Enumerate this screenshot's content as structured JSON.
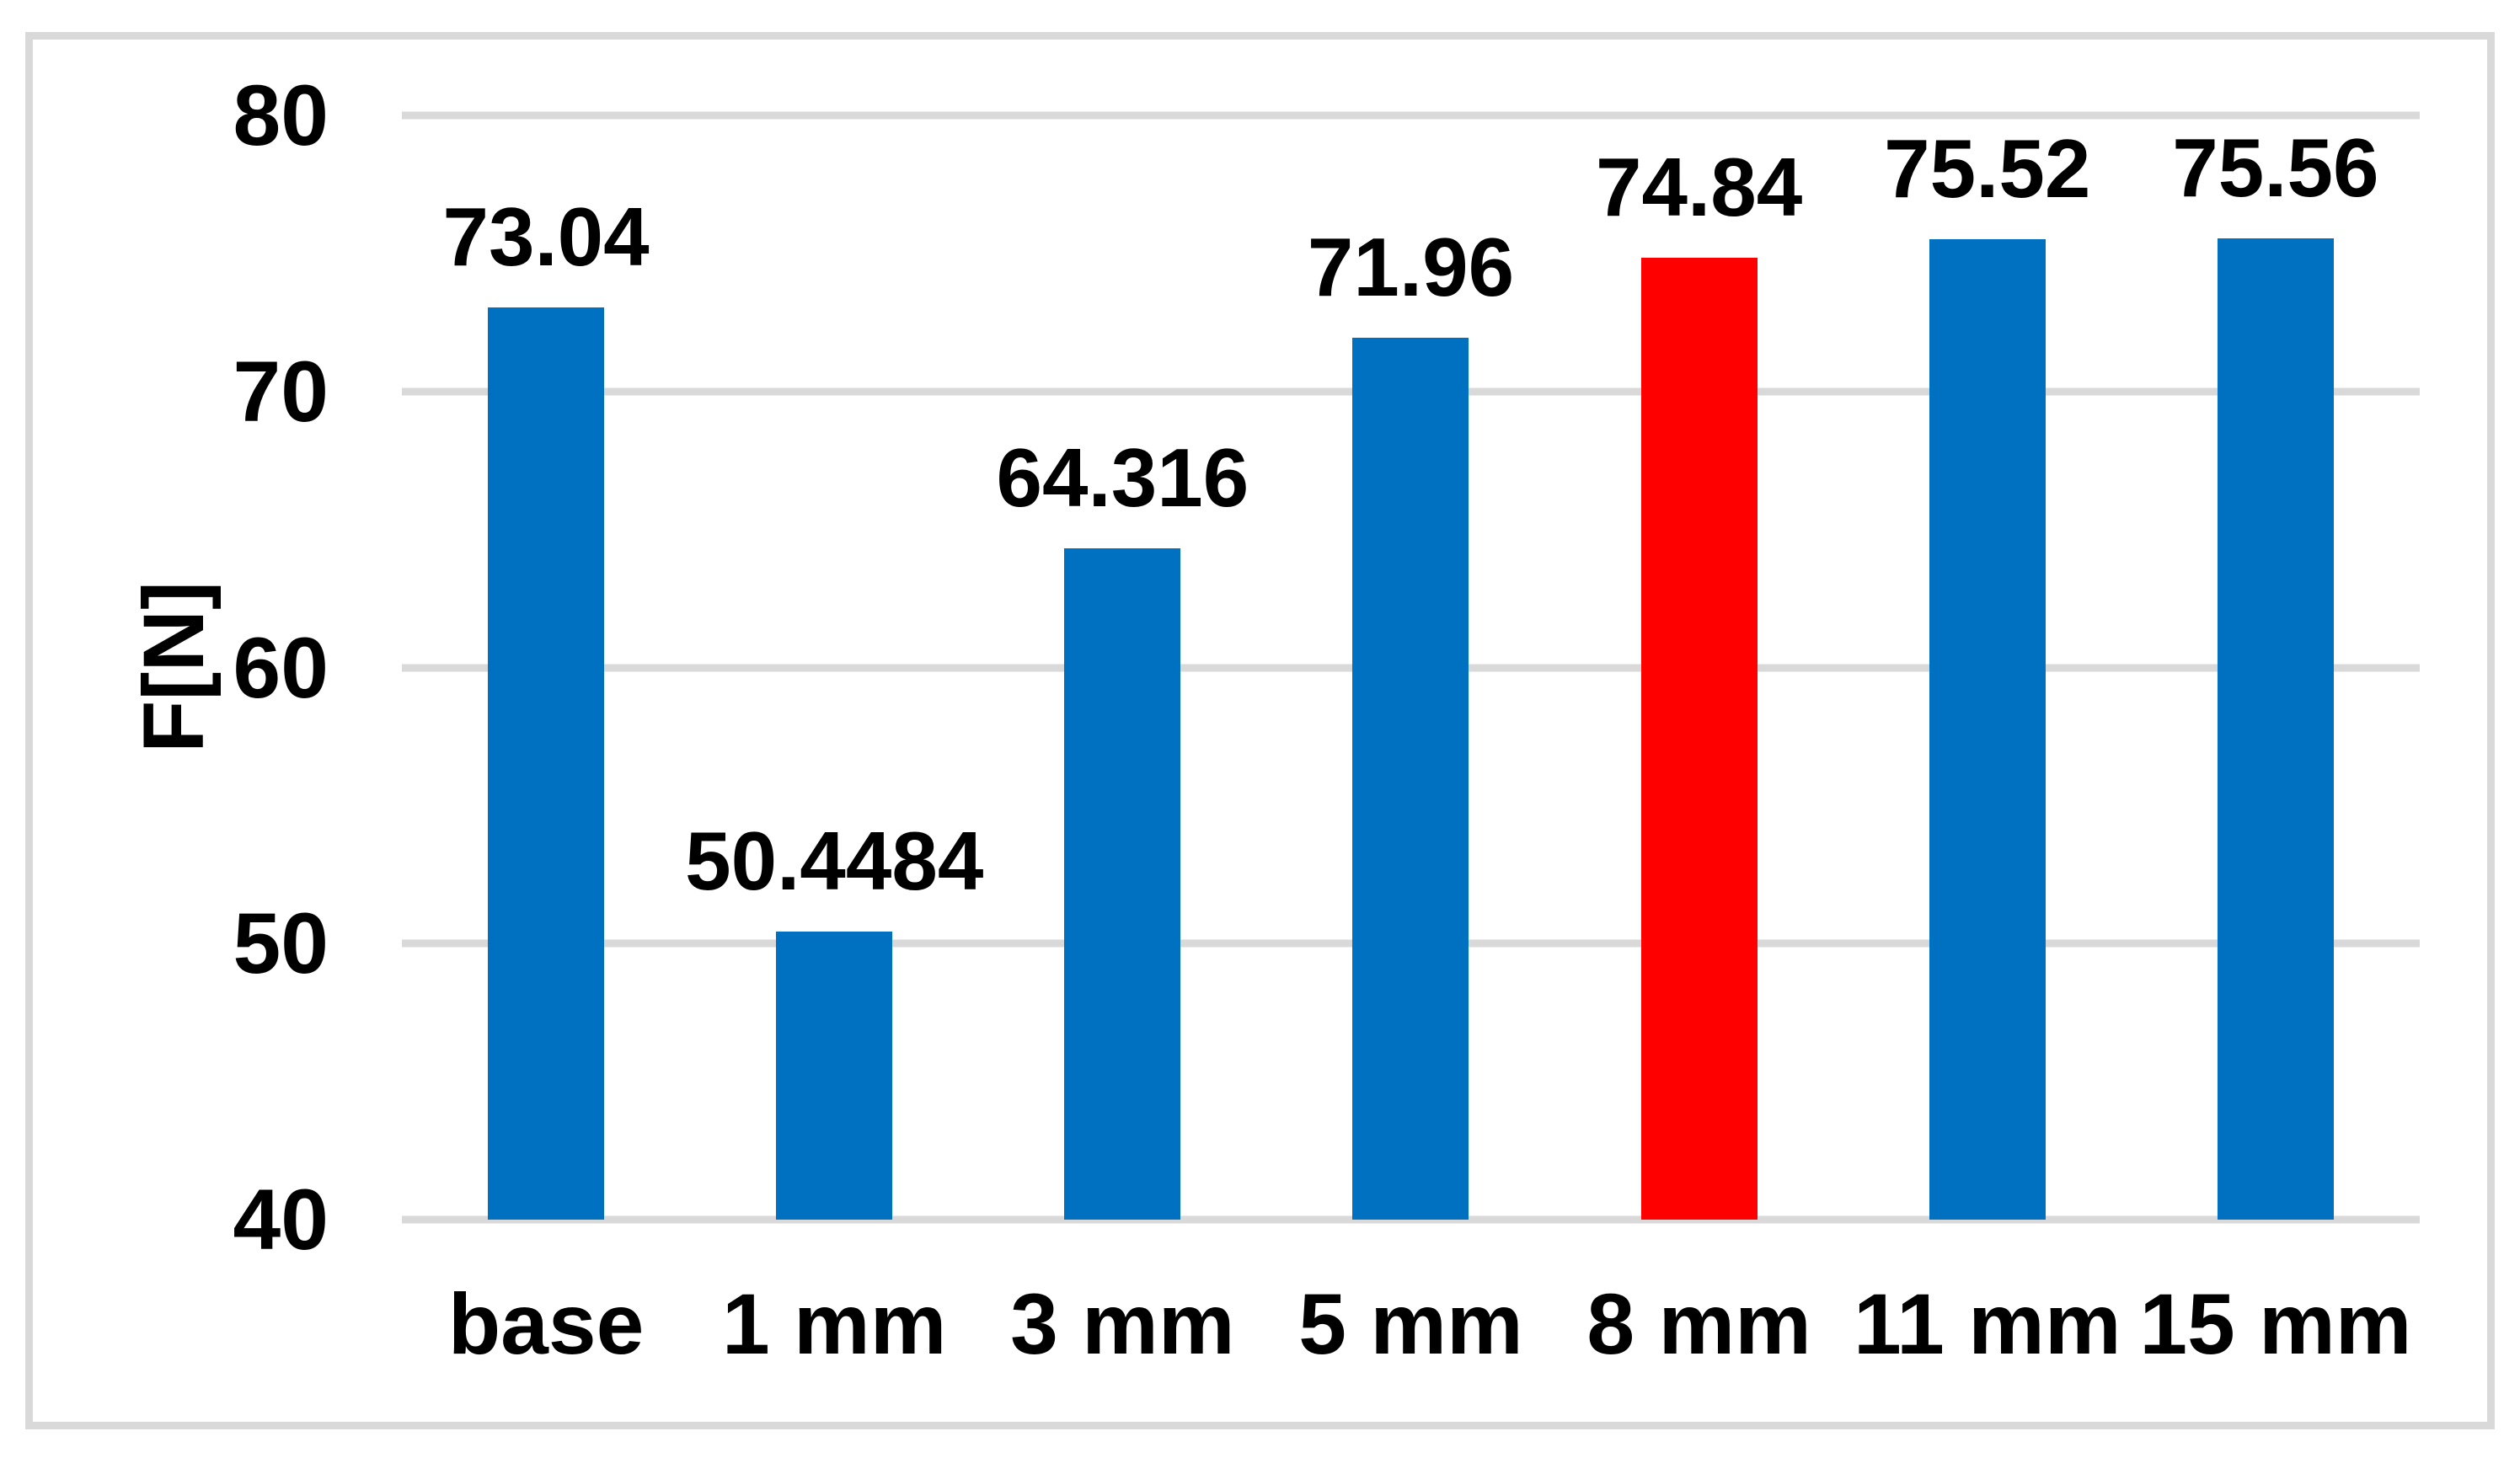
{
  "chart_data": {
    "type": "bar",
    "title": "",
    "xlabel": "",
    "ylabel": "F[N]",
    "categories": [
      "base",
      "1 mm",
      "3 mm",
      "5 mm",
      "8 mm",
      "11 mm",
      "15 mm"
    ],
    "values": [
      73.04,
      50.4484,
      64.316,
      71.96,
      74.84,
      75.52,
      75.56
    ],
    "bar_labels": [
      "73.04",
      "50.4484",
      "64.316",
      "71.96",
      "74.84",
      "75.52",
      "75.56"
    ],
    "ylim": [
      40,
      80
    ],
    "y_ticks": [
      "80",
      "70",
      "60",
      "50",
      "40"
    ],
    "y_tick_values": [
      80,
      70,
      60,
      50,
      40
    ],
    "grid": true,
    "legend": false,
    "highlight_index": 4,
    "colors": {
      "bar": "#0070C0",
      "bar_highlight": "#FF0000",
      "gridline": "#D9D9D9",
      "frame_border": "#D9D9D9",
      "text": "#000000",
      "background": "#FFFFFF"
    }
  }
}
